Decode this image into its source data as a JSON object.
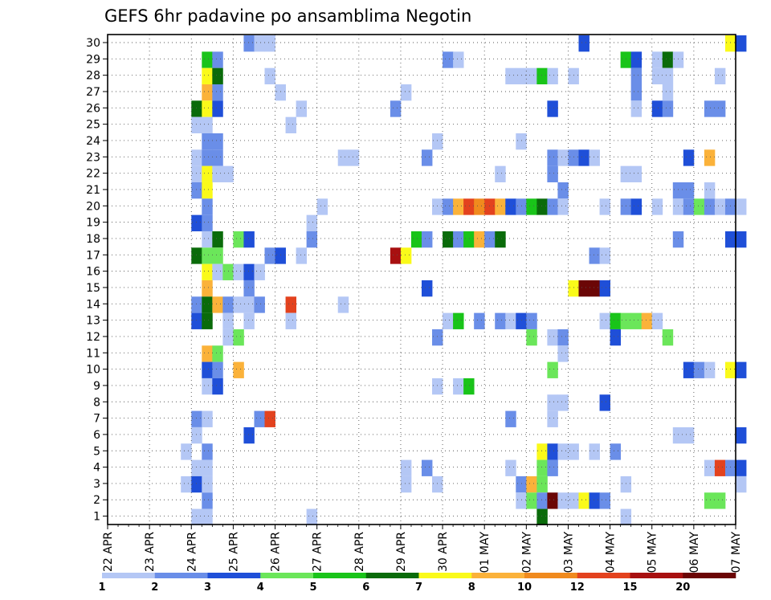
{
  "chart_data": {
    "type": "heatmap",
    "title": "GEFS 6hr padavine po ansamblima Negotin",
    "x_labels": [
      "22 APR",
      "23 APR",
      "24 APR",
      "25 APR",
      "26 APR",
      "27 APR",
      "28 APR",
      "29 APR",
      "30 APR",
      "01 MAY",
      "02 MAY",
      "03 MAY",
      "04 MAY",
      "05 MAY",
      "06 MAY",
      "07 MAY"
    ],
    "y_labels": [
      "1",
      "2",
      "3",
      "4",
      "5",
      "6",
      "7",
      "8",
      "9",
      "10",
      "11",
      "12",
      "13",
      "14",
      "15",
      "16",
      "17",
      "18",
      "19",
      "20",
      "21",
      "22",
      "23",
      "24",
      "25",
      "26",
      "27",
      "28",
      "29",
      "30"
    ],
    "steps_per_day": 4,
    "colorbar": {
      "labels": [
        "1",
        "2",
        "3",
        "4",
        "5",
        "6",
        "7",
        "8",
        "10",
        "12",
        "15",
        "20"
      ],
      "colors": [
        "#b4c7f5",
        "#6a8ee8",
        "#1f4fd8",
        "#6be65a",
        "#19c419",
        "#0a6b0a",
        "#fafa1a",
        "#fbb23a",
        "#f08a1e",
        "#e3421e",
        "#a81010",
        "#6b0606"
      ]
    },
    "cells": [
      [
        30,
        3.25,
        2
      ],
      [
        30,
        3.5,
        1
      ],
      [
        30,
        3.75,
        1
      ],
      [
        30,
        11.25,
        3
      ],
      [
        30,
        14.75,
        7
      ],
      [
        30,
        15,
        3
      ],
      [
        29,
        2.25,
        5
      ],
      [
        29,
        2.5,
        2
      ],
      [
        29,
        8,
        2
      ],
      [
        29,
        8.25,
        1
      ],
      [
        29,
        12.25,
        5
      ],
      [
        29,
        12.5,
        3
      ],
      [
        29,
        13,
        1
      ],
      [
        29,
        13.25,
        6
      ],
      [
        29,
        13.5,
        1
      ],
      [
        28,
        2.25,
        7
      ],
      [
        28,
        2.5,
        6
      ],
      [
        28,
        3.75,
        1
      ],
      [
        28,
        9.5,
        1
      ],
      [
        28,
        9.75,
        1
      ],
      [
        28,
        10,
        1
      ],
      [
        28,
        10.25,
        5
      ],
      [
        28,
        10.5,
        1
      ],
      [
        28,
        11,
        1
      ],
      [
        28,
        12.5,
        2
      ],
      [
        28,
        13,
        1
      ],
      [
        28,
        13.25,
        1
      ],
      [
        28,
        14.5,
        1
      ],
      [
        27,
        2.25,
        8
      ],
      [
        27,
        2.5,
        2
      ],
      [
        27,
        4,
        1
      ],
      [
        27,
        7,
        1
      ],
      [
        27,
        12.5,
        2
      ],
      [
        27,
        13.25,
        1
      ],
      [
        26,
        2,
        6
      ],
      [
        26,
        2.25,
        7
      ],
      [
        26,
        2.5,
        3
      ],
      [
        26,
        4.5,
        1
      ],
      [
        26,
        6.75,
        2
      ],
      [
        26,
        10.5,
        3
      ],
      [
        26,
        12.5,
        1
      ],
      [
        26,
        13,
        3
      ],
      [
        26,
        13.25,
        2
      ],
      [
        26,
        14.25,
        2
      ],
      [
        26,
        14.5,
        2
      ],
      [
        25,
        2,
        1
      ],
      [
        25,
        2.25,
        1
      ],
      [
        25,
        4.25,
        1
      ],
      [
        24,
        2.25,
        2
      ],
      [
        24,
        2.5,
        2
      ],
      [
        24,
        7.75,
        1
      ],
      [
        24,
        9.75,
        1
      ],
      [
        23,
        2,
        1
      ],
      [
        23,
        2.25,
        2
      ],
      [
        23,
        2.5,
        2
      ],
      [
        23,
        5.5,
        1
      ],
      [
        23,
        5.75,
        1
      ],
      [
        23,
        7.5,
        2
      ],
      [
        23,
        10.5,
        2
      ],
      [
        23,
        10.75,
        1
      ],
      [
        23,
        11,
        2
      ],
      [
        23,
        11.25,
        3
      ],
      [
        23,
        11.5,
        1
      ],
      [
        23,
        13.75,
        3
      ],
      [
        23,
        14.25,
        8
      ],
      [
        22,
        2,
        1
      ],
      [
        22,
        2.25,
        7
      ],
      [
        22,
        2.5,
        1
      ],
      [
        22,
        2.75,
        1
      ],
      [
        22,
        9.25,
        1
      ],
      [
        22,
        10.5,
        2
      ],
      [
        22,
        12.25,
        1
      ],
      [
        22,
        12.5,
        1
      ],
      [
        21,
        2,
        2
      ],
      [
        21,
        2.25,
        7
      ],
      [
        21,
        10.75,
        2
      ],
      [
        21,
        13.5,
        2
      ],
      [
        21,
        13.75,
        2
      ],
      [
        21,
        14.25,
        1
      ],
      [
        20,
        2.25,
        2
      ],
      [
        20,
        5,
        1
      ],
      [
        20,
        7.75,
        1
      ],
      [
        20,
        8,
        2
      ],
      [
        20,
        8.25,
        8
      ],
      [
        20,
        8.5,
        10
      ],
      [
        20,
        8.75,
        9
      ],
      [
        20,
        9,
        10
      ],
      [
        20,
        9.25,
        8
      ],
      [
        20,
        9.5,
        3
      ],
      [
        20,
        9.75,
        2
      ],
      [
        20,
        10,
        5
      ],
      [
        20,
        10.25,
        6
      ],
      [
        20,
        10.5,
        2
      ],
      [
        20,
        10.75,
        1
      ],
      [
        20,
        11.75,
        1
      ],
      [
        20,
        12.25,
        2
      ],
      [
        20,
        12.5,
        3
      ],
      [
        20,
        13,
        1
      ],
      [
        20,
        13.5,
        1
      ],
      [
        20,
        13.75,
        2
      ],
      [
        20,
        14,
        4
      ],
      [
        20,
        14.25,
        2
      ],
      [
        20,
        14.5,
        1
      ],
      [
        20,
        14.75,
        2
      ],
      [
        20,
        15,
        1
      ],
      [
        19,
        2,
        3
      ],
      [
        19,
        2.25,
        2
      ],
      [
        19,
        4.75,
        1
      ],
      [
        18,
        2.25,
        1
      ],
      [
        18,
        2.5,
        6
      ],
      [
        18,
        3,
        4
      ],
      [
        18,
        3.25,
        3
      ],
      [
        18,
        4.75,
        2
      ],
      [
        18,
        7.25,
        5
      ],
      [
        18,
        7.5,
        2
      ],
      [
        18,
        8,
        6
      ],
      [
        18,
        8.25,
        2
      ],
      [
        18,
        8.5,
        5
      ],
      [
        18,
        8.75,
        8
      ],
      [
        18,
        9,
        2
      ],
      [
        18,
        9.25,
        6
      ],
      [
        18,
        13.5,
        2
      ],
      [
        18,
        14.75,
        3
      ],
      [
        18,
        15,
        3
      ],
      [
        17,
        2,
        6
      ],
      [
        17,
        2.25,
        4
      ],
      [
        17,
        2.5,
        4
      ],
      [
        17,
        3.75,
        2
      ],
      [
        17,
        4,
        3
      ],
      [
        17,
        4.5,
        1
      ],
      [
        17,
        6.75,
        11
      ],
      [
        17,
        7,
        7
      ],
      [
        17,
        11.5,
        2
      ],
      [
        17,
        11.75,
        1
      ],
      [
        16,
        2.25,
        7
      ],
      [
        16,
        2.5,
        1
      ],
      [
        16,
        2.75,
        4
      ],
      [
        16,
        3,
        1
      ],
      [
        16,
        3.25,
        3
      ],
      [
        16,
        3.5,
        1
      ],
      [
        15,
        2.25,
        8
      ],
      [
        15,
        3.25,
        2
      ],
      [
        15,
        7.5,
        3
      ],
      [
        15,
        11,
        7
      ],
      [
        15,
        11.25,
        12
      ],
      [
        15,
        11.5,
        12
      ],
      [
        15,
        11.75,
        3
      ],
      [
        14,
        2,
        2
      ],
      [
        14,
        2.25,
        6
      ],
      [
        14,
        2.5,
        8
      ],
      [
        14,
        2.75,
        2
      ],
      [
        14,
        3,
        1
      ],
      [
        14,
        3.25,
        1
      ],
      [
        14,
        3.5,
        2
      ],
      [
        14,
        4.25,
        10
      ],
      [
        14,
        5.5,
        1
      ],
      [
        13,
        2,
        3
      ],
      [
        13,
        2.25,
        6
      ],
      [
        13,
        2.75,
        1
      ],
      [
        13,
        3.25,
        1
      ],
      [
        13,
        4.25,
        1
      ],
      [
        13,
        8,
        1
      ],
      [
        13,
        8.25,
        5
      ],
      [
        13,
        8.75,
        2
      ],
      [
        13,
        9.25,
        2
      ],
      [
        13,
        9.5,
        1
      ],
      [
        13,
        9.75,
        3
      ],
      [
        13,
        10,
        2
      ],
      [
        13,
        11.75,
        1
      ],
      [
        13,
        12,
        5
      ],
      [
        13,
        12.25,
        4
      ],
      [
        13,
        12.5,
        4
      ],
      [
        13,
        12.75,
        8
      ],
      [
        13,
        13,
        1
      ],
      [
        12,
        2.75,
        1
      ],
      [
        12,
        3,
        4
      ],
      [
        12,
        7.75,
        2
      ],
      [
        12,
        10,
        4
      ],
      [
        12,
        10.5,
        1
      ],
      [
        12,
        10.75,
        2
      ],
      [
        12,
        12,
        3
      ],
      [
        12,
        13.25,
        4
      ],
      [
        11,
        2.25,
        8
      ],
      [
        11,
        2.5,
        4
      ],
      [
        11,
        10.75,
        1
      ],
      [
        10,
        2.25,
        3
      ],
      [
        10,
        2.5,
        2
      ],
      [
        10,
        3,
        8
      ],
      [
        10,
        10.5,
        4
      ],
      [
        10,
        13.75,
        3
      ],
      [
        10,
        14,
        2
      ],
      [
        10,
        14.25,
        1
      ],
      [
        10,
        14.75,
        7
      ],
      [
        10,
        15,
        3
      ],
      [
        9,
        2.25,
        1
      ],
      [
        9,
        2.5,
        3
      ],
      [
        9,
        7.75,
        1
      ],
      [
        9,
        8.25,
        1
      ],
      [
        9,
        8.5,
        5
      ],
      [
        8,
        10.5,
        1
      ],
      [
        8,
        10.75,
        1
      ],
      [
        8,
        11.75,
        3
      ],
      [
        7,
        2,
        2
      ],
      [
        7,
        2.25,
        1
      ],
      [
        7,
        3.5,
        2
      ],
      [
        7,
        3.75,
        10
      ],
      [
        7,
        9.5,
        2
      ],
      [
        7,
        10.5,
        1
      ],
      [
        6,
        2,
        1
      ],
      [
        6,
        3.25,
        3
      ],
      [
        6,
        13.5,
        1
      ],
      [
        6,
        13.75,
        1
      ],
      [
        6,
        15,
        3
      ],
      [
        5,
        1.75,
        1
      ],
      [
        5,
        2.25,
        2
      ],
      [
        5,
        10.25,
        7
      ],
      [
        5,
        10.5,
        3
      ],
      [
        5,
        10.75,
        1
      ],
      [
        5,
        11,
        1
      ],
      [
        5,
        11.5,
        1
      ],
      [
        5,
        12,
        2
      ],
      [
        4,
        2,
        1
      ],
      [
        4,
        2.25,
        1
      ],
      [
        4,
        7,
        1
      ],
      [
        4,
        7.5,
        2
      ],
      [
        4,
        9.5,
        1
      ],
      [
        4,
        10.25,
        4
      ],
      [
        4,
        10.5,
        2
      ],
      [
        4,
        14.25,
        1
      ],
      [
        4,
        14.5,
        10
      ],
      [
        4,
        14.75,
        2
      ],
      [
        4,
        15,
        3
      ],
      [
        3,
        1.75,
        1
      ],
      [
        3,
        2,
        3
      ],
      [
        3,
        2.25,
        1
      ],
      [
        3,
        7,
        1
      ],
      [
        3,
        7.75,
        1
      ],
      [
        3,
        9.75,
        2
      ],
      [
        3,
        10,
        8
      ],
      [
        3,
        10.25,
        4
      ],
      [
        3,
        12.25,
        1
      ],
      [
        3,
        15,
        1
      ],
      [
        2,
        2.25,
        2
      ],
      [
        2,
        9.75,
        1
      ],
      [
        2,
        10,
        4
      ],
      [
        2,
        10.25,
        2
      ],
      [
        2,
        10.5,
        12
      ],
      [
        2,
        10.75,
        1
      ],
      [
        2,
        11,
        1
      ],
      [
        2,
        11.25,
        7
      ],
      [
        2,
        11.5,
        3
      ],
      [
        2,
        11.75,
        2
      ],
      [
        2,
        14.25,
        4
      ],
      [
        2,
        14.5,
        4
      ],
      [
        1,
        2,
        1
      ],
      [
        1,
        2.25,
        1
      ],
      [
        1,
        4.75,
        1
      ],
      [
        1,
        10.25,
        6
      ],
      [
        1,
        12.25,
        1
      ]
    ]
  }
}
